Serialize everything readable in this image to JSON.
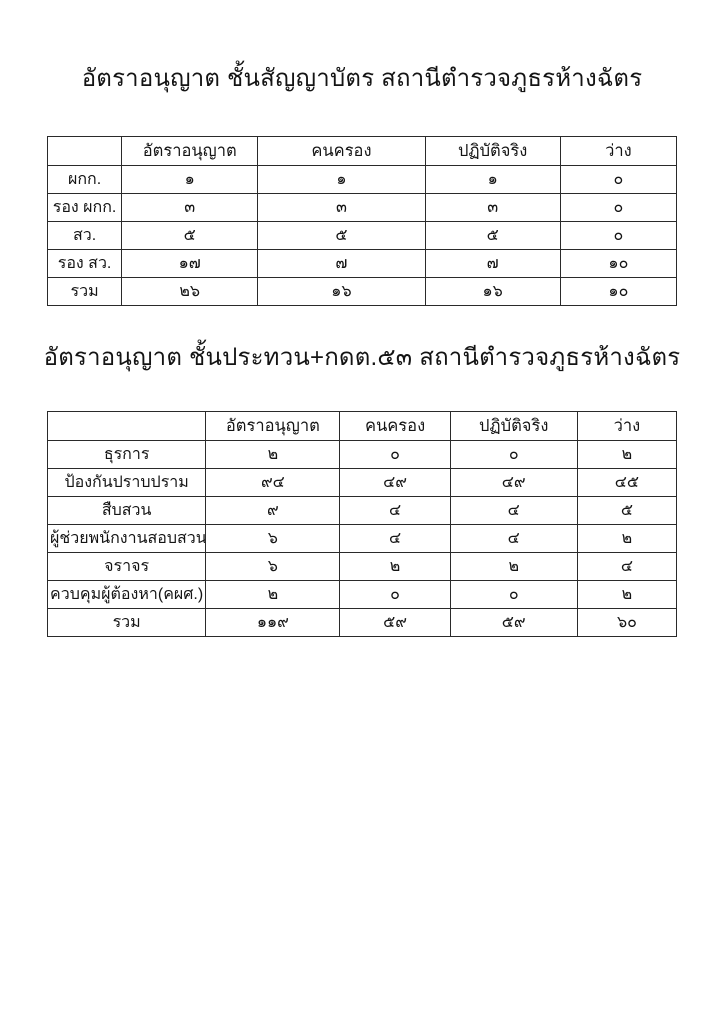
{
  "page": {
    "background_color": "#ffffff",
    "text_color": "#141414",
    "table_border_color": "#2a2a2a"
  },
  "titles": {
    "table1": "อัตราอนุญาต ชั้นสัญญาบัตร สถานีตำรวจภูธรห้างฉัตร",
    "table2": "อัตราอนุญาต ชั้นประทวน+กดต.๕๓ สถานีตำรวจภูธรห้างฉัตร"
  },
  "tables": {
    "table1": {
      "columns": [
        "",
        "อัตราอนุญาต",
        "คนครอง",
        "ปฏิบัติจริง",
        "ว่าง"
      ],
      "rows": [
        {
          "label": "ผกก.",
          "values": [
            "๑",
            "๑",
            "๑",
            "๐"
          ]
        },
        {
          "label": "รอง ผกก.",
          "values": [
            "๓",
            "๓",
            "๓",
            "๐"
          ]
        },
        {
          "label": "สว.",
          "values": [
            "๕",
            "๕",
            "๕",
            "๐"
          ]
        },
        {
          "label": "รอง สว.",
          "values": [
            "๑๗",
            "๗",
            "๗",
            "๑๐"
          ]
        },
        {
          "label": "รวม",
          "values": [
            "๒๖",
            "๑๖",
            "๑๖",
            "๑๐"
          ]
        }
      ]
    },
    "table2": {
      "columns": [
        "",
        "อัตราอนุญาต",
        "คนครอง",
        "ปฏิบัติจริง",
        "ว่าง"
      ],
      "rows": [
        {
          "label": "ธุรการ",
          "values": [
            "๒",
            "๐",
            "๐",
            "๒"
          ]
        },
        {
          "label": "ป้องกันปราบปราม",
          "values": [
            "๙๔",
            "๔๙",
            "๔๙",
            "๔๕"
          ]
        },
        {
          "label": "สืบสวน",
          "values": [
            "๙",
            "๔",
            "๔",
            "๕"
          ]
        },
        {
          "label": "ผู้ช่วยพนักงานสอบสวน",
          "values": [
            "๖",
            "๔",
            "๔",
            "๒"
          ]
        },
        {
          "label": "จราจร",
          "values": [
            "๖",
            "๒",
            "๒",
            "๔"
          ]
        },
        {
          "label": "ควบคุมผู้ต้องหา(คผศ.)",
          "values": [
            "๒",
            "๐",
            "๐",
            "๒"
          ]
        },
        {
          "label": "รวม",
          "values": [
            "๑๑๙",
            "๕๙",
            "๕๙",
            "๖๐"
          ]
        }
      ]
    }
  }
}
